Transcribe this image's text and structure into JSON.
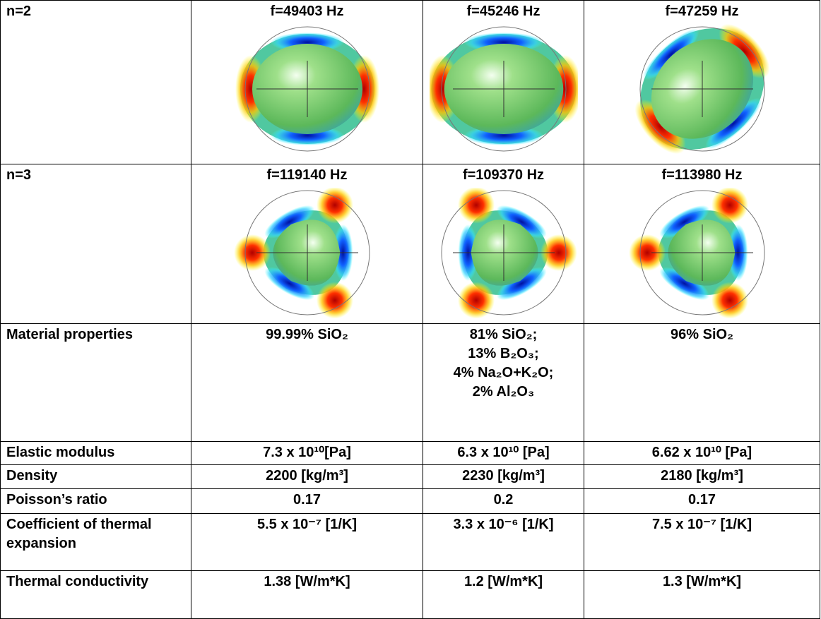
{
  "table": {
    "rows": [
      [
        "n=2",
        "f=49403 Hz",
        "f=45246 Hz",
        "f=47259 Hz"
      ],
      [
        "n=3",
        "f=119140 Hz",
        "f=109370 Hz",
        "f=113980 Hz"
      ],
      [
        "Material properties",
        "99.99% SiO₂",
        [
          "81% SiO₂;",
          "13% B₂O₃;",
          "4% Na₂O+K₂O;",
          "2% Al₂O₃"
        ],
        "96% SiO₂"
      ],
      [
        "Elastic modulus",
        "7.3 x 10¹⁰[Pa]",
        "6.3 x 10¹⁰ [Pa]",
        "6.62 x 10¹⁰ [Pa]"
      ],
      [
        "Density",
        "2200 [kg/m³]",
        "2230 [kg/m³]",
        "2180 [kg/m³]"
      ],
      [
        "Poisson’s ratio",
        "0.17",
        "0.2",
        "0.17"
      ],
      [
        "Coefficient of thermal expansion",
        "5.5 x 10⁻⁷ [1/K]",
        "3.3 x 10⁻⁶ [1/K]",
        "7.5 x 10⁻⁷ [1/K]"
      ],
      [
        "Thermal conductivity",
        "1.38 [W/m*K]",
        "1.2 [W/m*K]",
        "1.3 [W/m*K]"
      ]
    ]
  }
}
